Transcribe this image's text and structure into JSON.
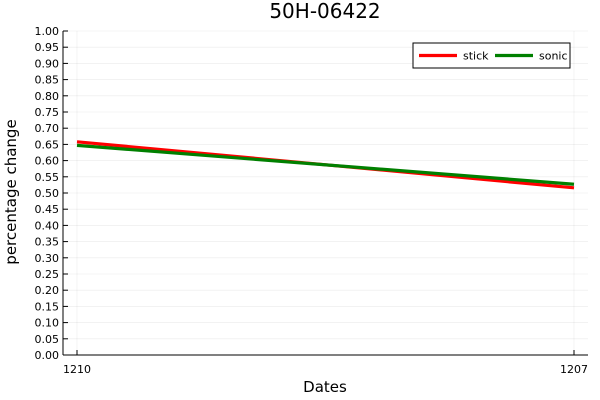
{
  "chart_data": {
    "type": "line",
    "title": "50H-06422",
    "xlabel": "Dates",
    "ylabel": "percentage change",
    "categories": [
      "1210",
      "1207"
    ],
    "ylim": [
      0,
      1
    ],
    "yticks": [
      "0.00",
      "0.05",
      "0.10",
      "0.15",
      "0.20",
      "0.25",
      "0.30",
      "0.35",
      "0.40",
      "0.45",
      "0.50",
      "0.55",
      "0.60",
      "0.65",
      "0.70",
      "0.75",
      "0.80",
      "0.85",
      "0.90",
      "0.95",
      "1.00"
    ],
    "grid": true,
    "legend_position": "top-right",
    "series": [
      {
        "name": "stick",
        "color": "#ff0000",
        "values": [
          0.658,
          0.516
        ]
      },
      {
        "name": "sonic",
        "color": "#008000",
        "values": [
          0.647,
          0.527
        ]
      }
    ]
  }
}
